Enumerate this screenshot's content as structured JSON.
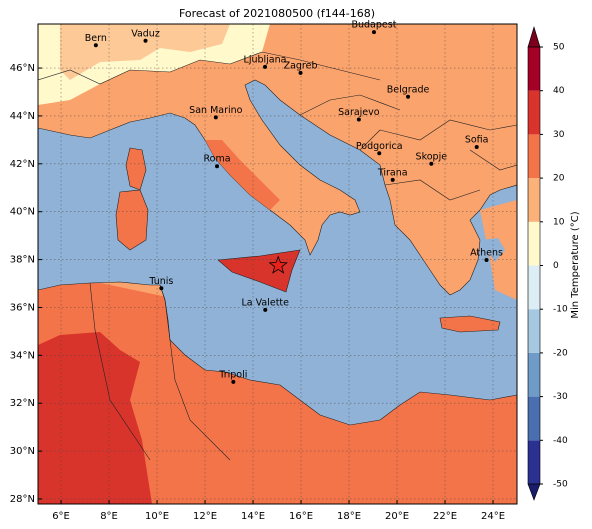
{
  "map_data": {
    "title": "Forecast of 2021080500 (f144-168)",
    "xlim": [
      5.04,
      25.0
    ],
    "ylim": [
      27.79,
      47.84
    ],
    "xticks": [
      {
        "value": 6,
        "label": "6°E"
      },
      {
        "value": 8,
        "label": "8°E"
      },
      {
        "value": 10,
        "label": "10°E"
      },
      {
        "value": 12,
        "label": "12°E"
      },
      {
        "value": 14,
        "label": "14°E"
      },
      {
        "value": 16,
        "label": "16°E"
      },
      {
        "value": 18,
        "label": "18°E"
      },
      {
        "value": 20,
        "label": "20°E"
      },
      {
        "value": 22,
        "label": "22°E"
      },
      {
        "value": 24,
        "label": "24°E"
      }
    ],
    "yticks": [
      {
        "value": 28,
        "label": "28°N"
      },
      {
        "value": 30,
        "label": "30°N"
      },
      {
        "value": 32,
        "label": "32°N"
      },
      {
        "value": 34,
        "label": "34°N"
      },
      {
        "value": 36,
        "label": "36°N"
      },
      {
        "value": 38,
        "label": "38°N"
      },
      {
        "value": 40,
        "label": "40°N"
      },
      {
        "value": 42,
        "label": "42°N"
      },
      {
        "value": 44,
        "label": "44°N"
      },
      {
        "value": 46,
        "label": "46°N"
      }
    ],
    "grid": true,
    "cities": [
      {
        "name": "Bern",
        "lon": 7.45,
        "lat": 46.95
      },
      {
        "name": "Vaduz",
        "lon": 9.52,
        "lat": 47.14
      },
      {
        "name": "Budapest",
        "lon": 19.04,
        "lat": 47.5
      },
      {
        "name": "Ljubljana",
        "lon": 14.5,
        "lat": 46.05
      },
      {
        "name": "Zagreb",
        "lon": 15.98,
        "lat": 45.8
      },
      {
        "name": "Belgrade",
        "lon": 20.46,
        "lat": 44.8
      },
      {
        "name": "Sarajevo",
        "lon": 18.41,
        "lat": 43.85
      },
      {
        "name": "San Marino",
        "lon": 12.45,
        "lat": 43.94
      },
      {
        "name": "Roma",
        "lon": 12.5,
        "lat": 41.9
      },
      {
        "name": "Podgorica",
        "lon": 19.26,
        "lat": 42.44
      },
      {
        "name": "Skopje",
        "lon": 21.43,
        "lat": 42.0
      },
      {
        "name": "Sofia",
        "lon": 23.32,
        "lat": 42.7
      },
      {
        "name": "Tirana",
        "lon": 19.82,
        "lat": 41.33
      },
      {
        "name": "Athens",
        "lon": 23.73,
        "lat": 37.98
      },
      {
        "name": "Tunis",
        "lon": 10.18,
        "lat": 36.8
      },
      {
        "name": "La Valette",
        "lon": 14.51,
        "lat": 35.9
      },
      {
        "name": "Tripoli",
        "lon": 13.18,
        "lat": 32.89
      }
    ],
    "marker": {
      "lon": 15.05,
      "lat": 37.75,
      "color": "#e8221a"
    },
    "colorbar": {
      "label": "Min Temperature (°C)",
      "ticks": [
        -50,
        -40,
        -30,
        -20,
        -10,
        0,
        10,
        20,
        30,
        40,
        50
      ],
      "colors": [
        "#2b3190",
        "#4a6fb0",
        "#6e9bc8",
        "#a6c8e1",
        "#dcedf4",
        "#fff9cc",
        "#fbb27a",
        "#f4744a",
        "#d8342b",
        "#a50026"
      ],
      "under_color": "#1a1d6a",
      "over_color": "#7a001c"
    }
  }
}
